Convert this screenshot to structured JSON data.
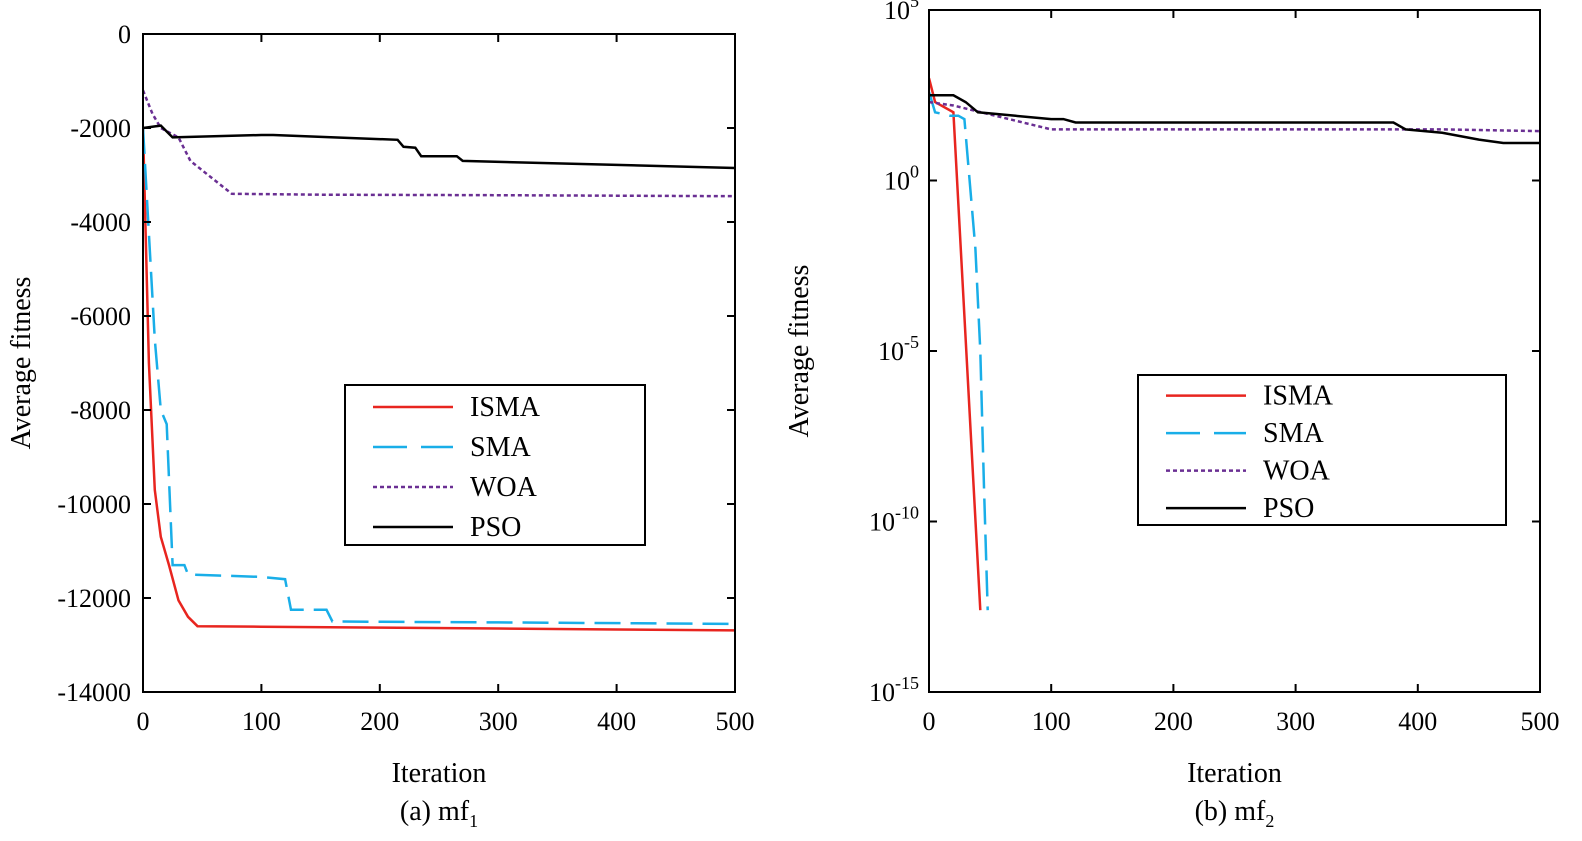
{
  "chart_data": [
    {
      "id": "a",
      "type": "line",
      "caption_prefix": "(a) mf",
      "caption_sub": "1",
      "xlabel": "Iteration",
      "ylabel": "Average fitness",
      "xlim": [
        0,
        500
      ],
      "ylim": [
        -14000,
        0
      ],
      "yscale": "linear",
      "xticks": [
        0,
        100,
        200,
        300,
        400,
        500
      ],
      "yticks": [
        0,
        -2000,
        -4000,
        -6000,
        -8000,
        -10000,
        -12000,
        -14000
      ],
      "ytick_labels": [
        "0",
        "-2000",
        "-4000",
        "-6000",
        "-8000",
        "-10000",
        "-12000",
        "-14000"
      ],
      "legend_position": "middle-right",
      "series": [
        {
          "name": "ISMA",
          "color": "#e8251f",
          "style": "solid",
          "points": [
            [
              0,
              -2000
            ],
            [
              5,
              -7000
            ],
            [
              10,
              -9700
            ],
            [
              15,
              -10700
            ],
            [
              22,
              -11300
            ],
            [
              30,
              -12050
            ],
            [
              38,
              -12400
            ],
            [
              46,
              -12600
            ],
            [
              100,
              -12610
            ],
            [
              200,
              -12630
            ],
            [
              300,
              -12650
            ],
            [
              400,
              -12670
            ],
            [
              500,
              -12690
            ]
          ]
        },
        {
          "name": "SMA",
          "color": "#19aee8",
          "style": "dashed",
          "points": [
            [
              0,
              -2000
            ],
            [
              10,
              -6500
            ],
            [
              15,
              -8000
            ],
            [
              20,
              -8300
            ],
            [
              25,
              -11300
            ],
            [
              35,
              -11300
            ],
            [
              38,
              -11500
            ],
            [
              100,
              -11550
            ],
            [
              120,
              -11600
            ],
            [
              125,
              -12250
            ],
            [
              155,
              -12250
            ],
            [
              160,
              -12500
            ],
            [
              300,
              -12520
            ],
            [
              500,
              -12550
            ]
          ]
        },
        {
          "name": "WOA",
          "color": "#6a2f93",
          "style": "dotted",
          "points": [
            [
              0,
              -1200
            ],
            [
              8,
              -1700
            ],
            [
              15,
              -2000
            ],
            [
              30,
              -2200
            ],
            [
              40,
              -2700
            ],
            [
              50,
              -2900
            ],
            [
              60,
              -3100
            ],
            [
              70,
              -3300
            ],
            [
              75,
              -3400
            ],
            [
              150,
              -3420
            ],
            [
              300,
              -3430
            ],
            [
              500,
              -3450
            ]
          ]
        },
        {
          "name": "PSO",
          "color": "#000000",
          "style": "solid",
          "points": [
            [
              0,
              -2000
            ],
            [
              15,
              -1950
            ],
            [
              25,
              -2200
            ],
            [
              100,
              -2150
            ],
            [
              110,
              -2150
            ],
            [
              215,
              -2250
            ],
            [
              220,
              -2400
            ],
            [
              230,
              -2420
            ],
            [
              235,
              -2600
            ],
            [
              265,
              -2600
            ],
            [
              270,
              -2700
            ],
            [
              500,
              -2850
            ]
          ]
        }
      ]
    },
    {
      "id": "b",
      "type": "line",
      "caption_prefix": "(b) mf",
      "caption_sub": "2",
      "xlabel": "Iteration",
      "ylabel": "Average fitness",
      "xlim": [
        0,
        500
      ],
      "ylim_exponent": [
        -15,
        5
      ],
      "yscale": "log",
      "xticks": [
        0,
        100,
        200,
        300,
        400,
        500
      ],
      "ytick_exponents": [
        5,
        0,
        -5,
        -10,
        -15
      ],
      "ytick_labels": [
        {
          "base": "10",
          "exp": "5"
        },
        {
          "base": "10",
          "exp": ""
        },
        {
          "base": "10",
          "exp": "-5"
        },
        {
          "base": "10",
          "exp": "-10"
        },
        {
          "base": "10",
          "exp": "-15"
        }
      ],
      "ytick_plain": {
        "exp": 0,
        "label": "10",
        "suffix": "0"
      },
      "legend_position": "middle-right",
      "series": [
        {
          "name": "ISMA",
          "color": "#e8251f",
          "style": "solid",
          "log10_points": [
            [
              0,
              3
            ],
            [
              5,
              2.3
            ],
            [
              20,
              2
            ],
            [
              42,
              -12.6
            ]
          ]
        },
        {
          "name": "SMA",
          "color": "#19aee8",
          "style": "dashed",
          "log10_points": [
            [
              0,
              2.6
            ],
            [
              5,
              2
            ],
            [
              17,
              1.9
            ],
            [
              24,
              1.9
            ],
            [
              29,
              1.8
            ],
            [
              38,
              -2
            ],
            [
              42,
              -5
            ],
            [
              45,
              -9
            ],
            [
              48,
              -12.6
            ]
          ]
        },
        {
          "name": "WOA",
          "color": "#6a2f93",
          "style": "dotted",
          "log10_points": [
            [
              0,
              2.3
            ],
            [
              20,
              2.2
            ],
            [
              100,
              1.5
            ],
            [
              300,
              1.5
            ],
            [
              420,
              1.5
            ],
            [
              500,
              1.45
            ]
          ]
        },
        {
          "name": "PSO",
          "color": "#000000",
          "style": "solid",
          "log10_points": [
            [
              0,
              2.5
            ],
            [
              20,
              2.5
            ],
            [
              30,
              2.3
            ],
            [
              40,
              2
            ],
            [
              100,
              1.8
            ],
            [
              110,
              1.8
            ],
            [
              120,
              1.7
            ],
            [
              380,
              1.7
            ],
            [
              390,
              1.5
            ],
            [
              420,
              1.4
            ],
            [
              450,
              1.2
            ],
            [
              470,
              1.1
            ],
            [
              500,
              1.1
            ]
          ]
        }
      ]
    }
  ]
}
